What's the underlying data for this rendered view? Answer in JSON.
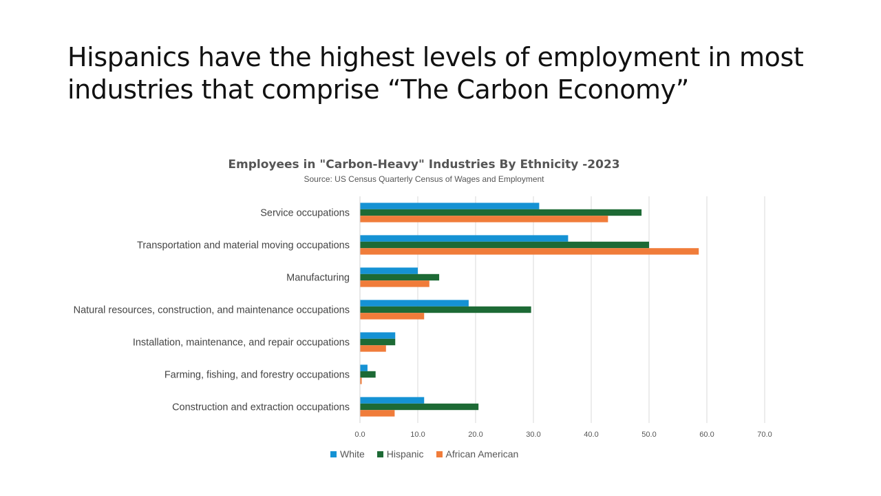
{
  "slide": {
    "title_line1": "Hispanics have the highest levels of employment in most",
    "title_line2": "industries that comprise “The Carbon Economy”"
  },
  "colors": {
    "White": "#1592d4",
    "Hispanic": "#1d6a35",
    "African American": "#f07c3a",
    "grid": "#d9d9d9"
  },
  "chart_data": {
    "type": "bar",
    "orientation": "horizontal",
    "title": "Employees in \"Carbon-Heavy\" Industries By Ethnicity -2023",
    "subtitle": "Source: US Census Quarterly Census of Wages and Employment",
    "categories": [
      "Service occupations",
      "Transportation and material moving occupations",
      "Manufacturing",
      "Natural resources, construction, and maintenance occupations",
      "Installation, maintenance, and repair occupations",
      "Farming, fishing, and forestry occupations",
      "Construction and extraction occupations"
    ],
    "series": [
      {
        "name": "White",
        "values": [
          31.0,
          36.0,
          10.0,
          18.8,
          6.1,
          1.3,
          11.1
        ]
      },
      {
        "name": "Hispanic",
        "values": [
          48.7,
          50.0,
          13.7,
          29.6,
          6.1,
          2.7,
          20.5
        ]
      },
      {
        "name": "African American",
        "values": [
          42.9,
          58.6,
          12.0,
          11.1,
          4.5,
          0.3,
          6.0
        ]
      }
    ],
    "xlim": [
      0,
      70
    ],
    "xticks": [
      "0.0",
      "10.0",
      "20.0",
      "30.0",
      "40.0",
      "50.0",
      "60.0",
      "70.0"
    ],
    "grid": true,
    "legend_position": "bottom"
  }
}
